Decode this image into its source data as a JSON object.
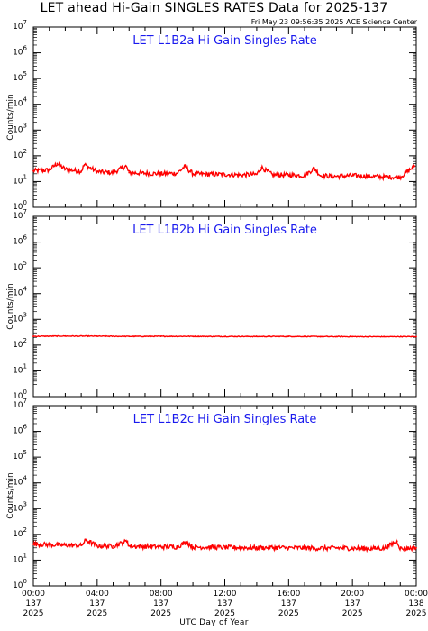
{
  "header": {
    "title": "LET ahead Hi-Gain SINGLES RATES Data for 2025-137",
    "timestamp": "Fri May 23 09:56:35 2025 ACE Science Center"
  },
  "x_axis_title": "UTC Day of Year",
  "colors": {
    "series": "#ff0000",
    "panel_title": "#1a1aee",
    "axes": "#000000"
  },
  "chart_data": [
    {
      "type": "line",
      "title": "LET L1B2a Hi Gain Singles Rate",
      "ylabel": "Counts/min",
      "yscale": "log",
      "ylim": [
        1,
        10000000
      ],
      "xlim": [
        "2025-137 00:00",
        "2025-138 00:00"
      ],
      "grid": false,
      "x_hours": [
        0,
        1,
        1.5,
        2,
        3,
        3.2,
        4,
        5,
        5.8,
        6,
        7,
        8,
        9,
        9.5,
        10,
        11,
        12,
        13,
        14,
        14.3,
        15,
        16,
        17,
        17.6,
        18,
        19,
        20,
        21,
        22,
        23,
        23.9
      ],
      "values": [
        26,
        28,
        50,
        30,
        25,
        45,
        24,
        22,
        40,
        22,
        21,
        20,
        21,
        38,
        20,
        19,
        19,
        18,
        19,
        35,
        18,
        18,
        17,
        33,
        17,
        16,
        17,
        16,
        15,
        15,
        40
      ],
      "y_ticks": [
        "10^0",
        "10^1",
        "10^2",
        "10^3",
        "10^4",
        "10^5",
        "10^6",
        "10^7"
      ]
    },
    {
      "type": "line",
      "title": "LET L1B2b Hi Gain Singles Rate",
      "ylabel": "Counts/min",
      "yscale": "log",
      "ylim": [
        1,
        10000000
      ],
      "xlim": [
        "2025-137 00:00",
        "2025-138 00:00"
      ],
      "grid": false,
      "x_hours": [
        0,
        2,
        4,
        6,
        8,
        10,
        12,
        14,
        16,
        18,
        20,
        22,
        24
      ],
      "values": [
        220,
        225,
        222,
        218,
        220,
        219,
        217,
        216,
        218,
        215,
        214,
        213,
        215
      ],
      "y_ticks": [
        "10^0",
        "10^1",
        "10^2",
        "10^3",
        "10^4",
        "10^5",
        "10^6",
        "10^7"
      ]
    },
    {
      "type": "line",
      "title": "LET L1B2c Hi Gain Singles Rate",
      "ylabel": "Counts/min",
      "yscale": "log",
      "ylim": [
        1,
        10000000
      ],
      "xlim": [
        "2025-137 00:00",
        "2025-138 00:00"
      ],
      "grid": false,
      "x_hours": [
        0,
        1,
        2,
        3,
        3.3,
        4,
        5,
        5.9,
        6,
        7,
        8,
        9,
        9.6,
        10,
        11,
        12,
        13,
        14,
        15,
        16,
        17,
        18,
        19,
        20,
        21,
        22,
        22.8,
        23,
        24
      ],
      "values": [
        42,
        40,
        38,
        37,
        60,
        36,
        35,
        55,
        35,
        34,
        33,
        33,
        50,
        32,
        32,
        31,
        31,
        30,
        31,
        30,
        30,
        29,
        30,
        29,
        28,
        29,
        55,
        28,
        30
      ],
      "y_ticks": [
        "10^0",
        "10^1",
        "10^2",
        "10^3",
        "10^4",
        "10^5",
        "10^6",
        "10^7"
      ]
    }
  ],
  "x_ticks": [
    {
      "time": "00:00",
      "day": "137",
      "year": "2025"
    },
    {
      "time": "04:00",
      "day": "137",
      "year": "2025"
    },
    {
      "time": "08:00",
      "day": "137",
      "year": "2025"
    },
    {
      "time": "12:00",
      "day": "137",
      "year": "2025"
    },
    {
      "time": "16:00",
      "day": "137",
      "year": "2025"
    },
    {
      "time": "20:00",
      "day": "137",
      "year": "2025"
    },
    {
      "time": "00:00",
      "day": "138",
      "year": "2025"
    }
  ]
}
